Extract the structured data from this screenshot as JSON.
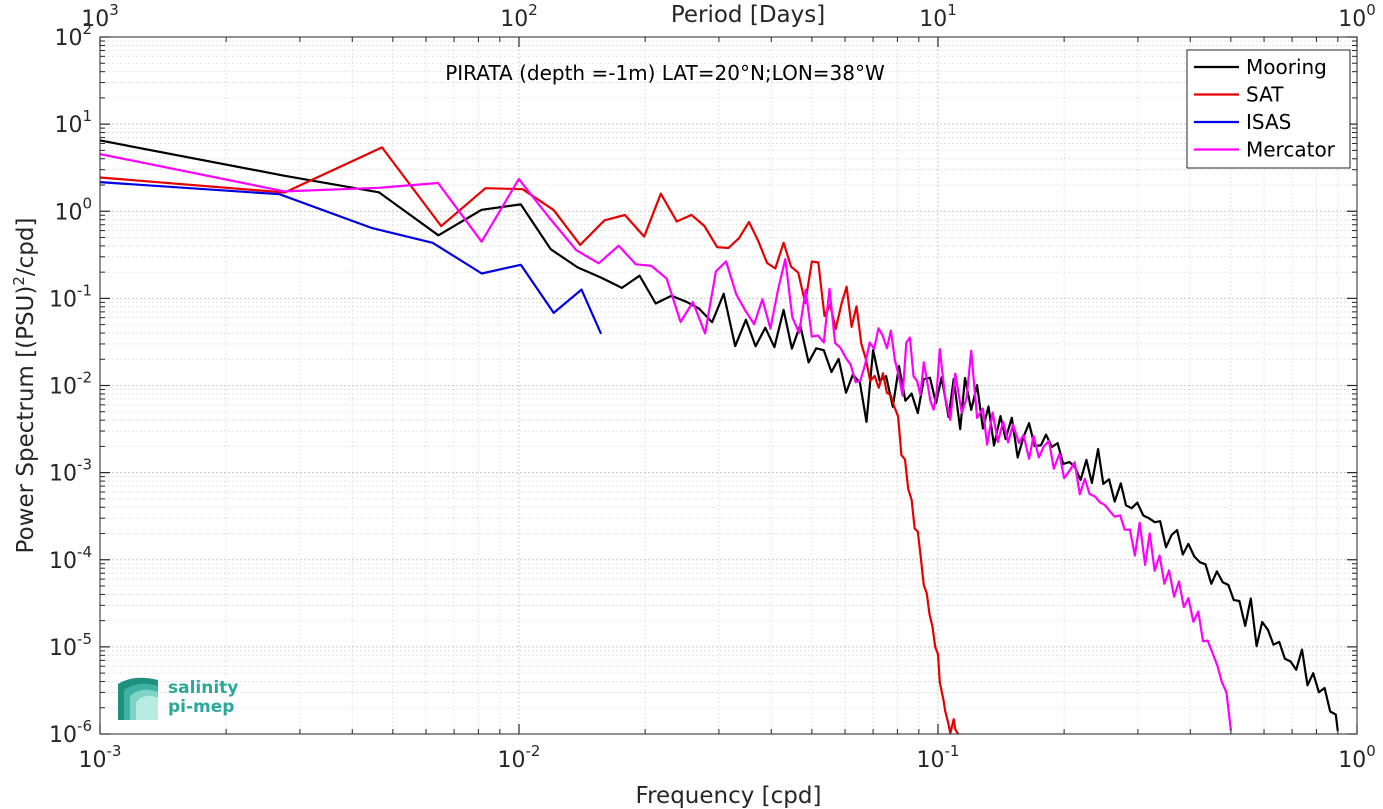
{
  "chart_data": {
    "type": "line",
    "title": "PIRATA (depth =-1m) LAT=20°N;LON=38°W",
    "xlabel": "Frequency [cpd]",
    "ylabel_main": "Power Spectrum [(PSU)",
    "ylabel_sup": "2",
    "ylabel_tail": "/cpd]",
    "top_xlabel": "Period [Days]",
    "xscale": "log",
    "yscale": "log",
    "xlim": [
      0.001,
      1
    ],
    "ylim": [
      1e-06,
      100
    ],
    "grid": true,
    "minor_grid": true,
    "legend_position": "top-right",
    "x_ticks": [
      {
        "value": 0.001,
        "base": "10",
        "exp": "-3"
      },
      {
        "value": 0.01,
        "base": "10",
        "exp": "-2"
      },
      {
        "value": 0.1,
        "base": "10",
        "exp": "-1"
      },
      {
        "value": 1,
        "base": "10",
        "exp": "0"
      }
    ],
    "y_ticks": [
      {
        "value": 1e-06,
        "base": "10",
        "exp": "-6"
      },
      {
        "value": 1e-05,
        "base": "10",
        "exp": "-5"
      },
      {
        "value": 0.0001,
        "base": "10",
        "exp": "-4"
      },
      {
        "value": 0.001,
        "base": "10",
        "exp": "-3"
      },
      {
        "value": 0.01,
        "base": "10",
        "exp": "-2"
      },
      {
        "value": 0.1,
        "base": "10",
        "exp": "-1"
      },
      {
        "value": 1,
        "base": "10",
        "exp": "0"
      },
      {
        "value": 10,
        "base": "10",
        "exp": "1"
      },
      {
        "value": 100,
        "base": "10",
        "exp": "2"
      }
    ],
    "top_ticks": [
      {
        "freq": 0.001,
        "base": "10",
        "exp": "3"
      },
      {
        "freq": 0.01,
        "base": "10",
        "exp": "2"
      },
      {
        "freq": 0.1,
        "base": "10",
        "exp": "1"
      },
      {
        "freq": 1,
        "base": "10",
        "exp": "0"
      }
    ],
    "series": [
      {
        "name": "Mooring",
        "color": "#000000",
        "x": [
          0.001,
          0.00276,
          0.00463,
          0.00642,
          0.00814,
          0.0101,
          0.0119,
          0.0138,
          0.0157,
          0.0176,
          0.0194,
          0.0212,
          0.0231,
          0.0251,
          0.0269,
          0.0289,
          0.0308,
          0.0328,
          0.0348,
          0.0367,
          0.0387,
          0.0407,
          0.0428,
          0.0448,
          0.0469,
          0.0491,
          0.0512,
          0.0534,
          0.0557,
          0.0579,
          0.0603,
          0.0626,
          0.0651,
          0.0675,
          0.07,
          0.0726,
          0.0752,
          0.078,
          0.0807,
          0.0836,
          0.0865,
          0.0895,
          0.0925,
          0.0957,
          0.0989,
          0.102,
          0.106,
          0.109,
          0.113,
          0.116,
          0.12,
          0.124,
          0.128,
          0.132,
          0.136,
          0.141,
          0.145,
          0.15,
          0.155,
          0.16,
          0.165,
          0.17,
          0.176,
          0.181,
          0.187,
          0.193,
          0.199,
          0.206,
          0.212,
          0.219,
          0.226,
          0.233,
          0.241,
          0.248,
          0.256,
          0.264,
          0.273,
          0.281,
          0.29,
          0.299,
          0.309,
          0.319,
          0.329,
          0.339,
          0.35,
          0.361,
          0.372,
          0.384,
          0.396,
          0.409,
          0.422,
          0.435,
          0.449,
          0.463,
          0.478,
          0.493,
          0.508,
          0.524,
          0.541,
          0.558,
          0.576,
          0.594,
          0.613,
          0.632,
          0.652,
          0.673,
          0.694,
          0.716,
          0.739,
          0.762,
          0.786,
          0.811,
          0.837,
          0.863,
          0.89,
          0.9
        ],
        "y": [
          6.5,
          2.55,
          1.65,
          0.53,
          1.04,
          1.2,
          0.367,
          0.227,
          0.173,
          0.132,
          0.182,
          0.0874,
          0.107,
          0.0914,
          0.0763,
          0.0533,
          0.113,
          0.0283,
          0.0567,
          0.0282,
          0.0461,
          0.0275,
          0.0737,
          0.0265,
          0.0491,
          0.0184,
          0.0267,
          0.0254,
          0.0143,
          0.0202,
          0.00826,
          0.0133,
          0.0108,
          0.00382,
          0.0255,
          0.0113,
          0.0128,
          0.00569,
          0.0167,
          0.00668,
          0.00807,
          0.00483,
          0.0118,
          0.0123,
          0.00624,
          0.0124,
          0.00435,
          0.0119,
          0.00316,
          0.0122,
          0.00525,
          0.0101,
          0.00321,
          0.00574,
          0.00205,
          0.00445,
          0.00243,
          0.00427,
          0.00149,
          0.00257,
          0.00369,
          0.00202,
          0.00206,
          0.00273,
          0.00197,
          0.00218,
          0.00126,
          0.00132,
          0.00117,
          0.000823,
          0.0014,
          0.000762,
          0.00186,
          0.000743,
          0.000838,
          0.000466,
          0.000753,
          0.000422,
          0.000391,
          0.000452,
          0.000322,
          0.000299,
          0.00027,
          0.000277,
          0.000139,
          0.000193,
          0.000219,
          0.000115,
          0.000152,
          0.000109,
          9.35e-05,
          8.87e-05,
          5.3e-05,
          7.35e-05,
          5.52e-05,
          5.14e-05,
          3.44e-05,
          3.36e-05,
          1.74e-05,
          3.59e-05,
          1.02e-05,
          1.93e-05,
          1.57e-05,
          1.06e-05,
          1.14e-05,
          7.32e-06,
          6.81e-06,
          5.46e-06,
          9.3e-06,
          3.62e-06,
          4.99e-06,
          3.01e-06,
          3.37e-06,
          1.81e-06,
          1.67e-06,
          1.08e-06
        ]
      },
      {
        "name": "SAT",
        "color": "#e60000",
        "x": [
          0.001,
          0.00276,
          0.00471,
          0.00652,
          0.00832,
          0.0102,
          0.0121,
          0.014,
          0.016,
          0.0179,
          0.0199,
          0.0218,
          0.0238,
          0.0258,
          0.0277,
          0.0297,
          0.0316,
          0.0335,
          0.0354,
          0.0372,
          0.0391,
          0.0409,
          0.0428,
          0.0446,
          0.0464,
          0.0482,
          0.05,
          0.0518,
          0.0536,
          0.0553,
          0.057,
          0.0588,
          0.0605,
          0.0622,
          0.0639,
          0.0656,
          0.0673,
          0.0689,
          0.0706,
          0.0722,
          0.0739,
          0.0755,
          0.0771,
          0.0787,
          0.0803,
          0.0818,
          0.0834,
          0.0849,
          0.0865,
          0.088,
          0.0895,
          0.091,
          0.0925,
          0.094,
          0.0955,
          0.097,
          0.0985,
          0.1,
          0.101,
          0.103,
          0.104,
          0.106,
          0.107,
          0.109,
          0.11,
          0.112
        ],
        "y": [
          2.44,
          1.64,
          5.41,
          0.676,
          1.84,
          1.79,
          1.03,
          0.411,
          0.787,
          0.906,
          0.512,
          1.59,
          0.763,
          0.908,
          0.678,
          0.388,
          0.379,
          0.491,
          0.753,
          0.459,
          0.255,
          0.22,
          0.436,
          0.231,
          0.197,
          0.0883,
          0.265,
          0.258,
          0.0628,
          0.084,
          0.0445,
          0.0855,
          0.136,
          0.047,
          0.081,
          0.0302,
          0.0201,
          0.0113,
          0.0129,
          0.0094,
          0.0138,
          0.00824,
          0.00776,
          0.00566,
          0.00441,
          0.00159,
          0.00142,
          0.000651,
          0.000488,
          0.000228,
          0.000211,
          0.000106,
          5.08e-05,
          4.15e-05,
          2.34e-05,
          1.71e-05,
          1e-05,
          8.22e-06,
          3.92e-06,
          2.49e-06,
          1.86e-06,
          1.28e-06,
          1.02e-06,
          1.48e-06,
          1.13e-06,
          9.8e-07
        ]
      },
      {
        "name": "ISAS",
        "color": "#0000e6",
        "x": [
          0.001,
          0.00268,
          0.00446,
          0.00622,
          0.00815,
          0.0101,
          0.0121,
          0.0141,
          0.0157
        ],
        "y": [
          2.16,
          1.57,
          0.64,
          0.434,
          0.193,
          0.243,
          0.0681,
          0.126,
          0.0391
        ]
      },
      {
        "name": "Mercator",
        "color": "#ff00ff",
        "x": [
          0.001,
          0.00276,
          0.00463,
          0.00641,
          0.00814,
          0.00999,
          0.0118,
          0.0137,
          0.0155,
          0.0173,
          0.019,
          0.0207,
          0.0225,
          0.0243,
          0.026,
          0.0278,
          0.0295,
          0.0312,
          0.033,
          0.0347,
          0.0364,
          0.0381,
          0.0398,
          0.0415,
          0.0432,
          0.0449,
          0.0466,
          0.0483,
          0.05,
          0.0517,
          0.0534,
          0.0551,
          0.0568,
          0.0585,
          0.0602,
          0.0619,
          0.0636,
          0.0653,
          0.067,
          0.0687,
          0.0704,
          0.0721,
          0.0738,
          0.0755,
          0.0772,
          0.0789,
          0.0806,
          0.0823,
          0.084,
          0.0857,
          0.0874,
          0.0891,
          0.0908,
          0.0925,
          0.0942,
          0.0959,
          0.0976,
          0.0993,
          0.101,
          0.104,
          0.107,
          0.11,
          0.114,
          0.117,
          0.12,
          0.124,
          0.128,
          0.131,
          0.135,
          0.139,
          0.143,
          0.147,
          0.151,
          0.156,
          0.16,
          0.165,
          0.169,
          0.174,
          0.179,
          0.184,
          0.189,
          0.195,
          0.2,
          0.206,
          0.212,
          0.218,
          0.224,
          0.23,
          0.237,
          0.243,
          0.25,
          0.257,
          0.264,
          0.272,
          0.279,
          0.287,
          0.295,
          0.303,
          0.312,
          0.32,
          0.329,
          0.338,
          0.347,
          0.356,
          0.366,
          0.376,
          0.386,
          0.396,
          0.407,
          0.418,
          0.429,
          0.44,
          0.452,
          0.464,
          0.476,
          0.488,
          0.5
        ],
        "y": [
          4.53,
          1.69,
          1.86,
          2.11,
          0.447,
          2.34,
          0.847,
          0.357,
          0.253,
          0.402,
          0.246,
          0.236,
          0.169,
          0.0536,
          0.0909,
          0.0395,
          0.204,
          0.266,
          0.111,
          0.0722,
          0.0506,
          0.0975,
          0.045,
          0.125,
          0.282,
          0.0608,
          0.0401,
          0.125,
          0.0364,
          0.0374,
          0.0312,
          0.129,
          0.0308,
          0.0271,
          0.0209,
          0.0173,
          0.0109,
          0.0114,
          0.0174,
          0.0311,
          0.0264,
          0.0453,
          0.0373,
          0.0268,
          0.0427,
          0.0195,
          0.0129,
          0.00768,
          0.0309,
          0.0356,
          0.0128,
          0.0113,
          0.00779,
          0.0184,
          0.0112,
          0.00668,
          0.00529,
          0.00839,
          0.0262,
          0.00733,
          0.00404,
          0.0137,
          0.00485,
          0.00722,
          0.0251,
          0.00425,
          0.00544,
          0.00209,
          0.00488,
          0.00225,
          0.00384,
          0.00222,
          0.00356,
          0.00219,
          0.00271,
          0.00144,
          0.00264,
          0.00149,
          0.00201,
          0.00232,
          0.00111,
          0.00165,
          0.000862,
          0.00105,
          0.00131,
          0.000564,
          0.000849,
          0.000569,
          0.000532,
          0.000459,
          0.000427,
          0.000362,
          0.000312,
          0.000324,
          0.000221,
          0.000222,
          0.000112,
          0.000266,
          8.73e-05,
          0.000201,
          7.47e-05,
          0.000112,
          5.29e-05,
          7.55e-05,
          3.77e-05,
          5.64e-05,
          2.86e-05,
          3.63e-05,
          1.94e-05,
          2.55e-05,
          1.16e-05,
          1.18e-05,
          8.52e-06,
          6.12e-06,
          3.94e-06,
          3.01e-06,
          1.1e-06
        ]
      }
    ]
  },
  "logo": {
    "line1": "salinity",
    "line2": "pi-mep",
    "colors": [
      "#1f8f80",
      "#3fb3a3",
      "#7fd4c6",
      "#b8ebe2"
    ]
  }
}
